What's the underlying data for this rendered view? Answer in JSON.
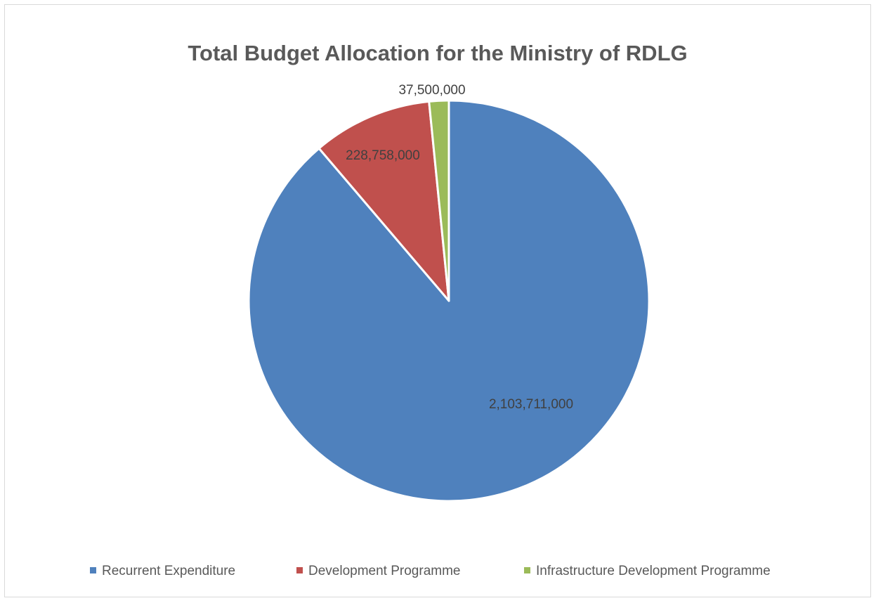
{
  "chart_data": {
    "type": "pie",
    "title": "Total Budget Allocation for the Ministry of RDLG",
    "categories": [
      "Recurrent Expenditure",
      "Development Programme",
      "Infrastructure Development Programme"
    ],
    "values": [
      2103711000,
      228758000,
      37500000
    ],
    "data_labels": [
      "2,103,711,000",
      "228,758,000",
      "37,500,000"
    ],
    "colors": [
      "#4f81bd",
      "#c0504d",
      "#9bbb59"
    ],
    "legend": {
      "position": "bottom",
      "entries": [
        "Recurrent Expenditure",
        "Development Programme",
        "Infrastructure Development Programme"
      ]
    },
    "start_angle": "12 o'clock",
    "direction": "clockwise"
  }
}
